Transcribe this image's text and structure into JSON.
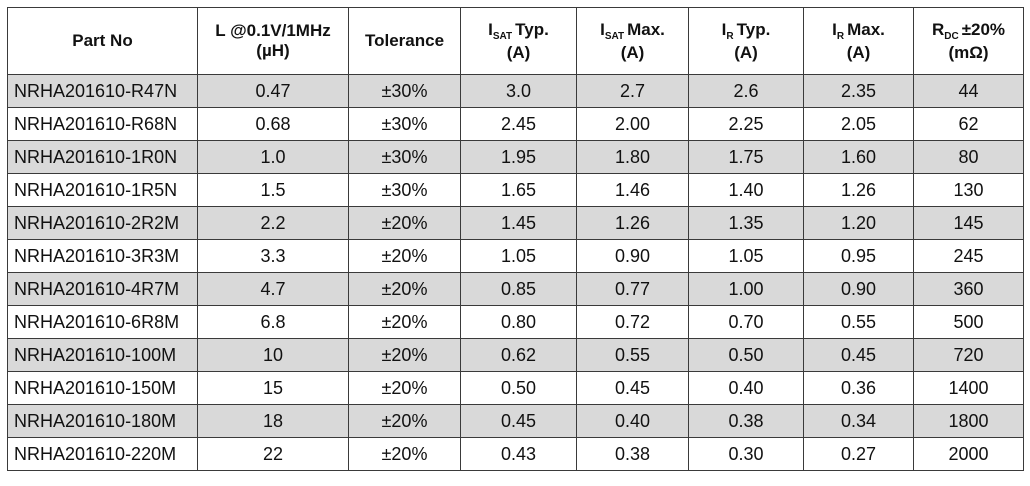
{
  "table": {
    "headers": [
      {
        "pre": "Part No",
        "sub": "",
        "post": "",
        "line2": ""
      },
      {
        "pre": "L @0.1V/1MHz",
        "sub": "",
        "post": "",
        "line2": "(µH)"
      },
      {
        "pre": "Tolerance",
        "sub": "",
        "post": "",
        "line2": ""
      },
      {
        "pre": "I",
        "sub": "SAT",
        "post": "Typ.",
        "line2": "(A)"
      },
      {
        "pre": "I",
        "sub": "SAT",
        "post": "Max.",
        "line2": "(A)"
      },
      {
        "pre": "I",
        "sub": "R",
        "post": "Typ.",
        "line2": "(A)"
      },
      {
        "pre": "I",
        "sub": "R",
        "post": "Max.",
        "line2": "(A)"
      },
      {
        "pre": "R",
        "sub": "DC",
        "post": "±20%",
        "line2": "(mΩ)"
      }
    ],
    "rows": [
      [
        "NRHA201610-R47N",
        "0.47",
        "±30%",
        "3.0",
        "2.7",
        "2.6",
        "2.35",
        "44"
      ],
      [
        "NRHA201610-R68N",
        "0.68",
        "±30%",
        "2.45",
        "2.00",
        "2.25",
        "2.05",
        "62"
      ],
      [
        "NRHA201610-1R0N",
        "1.0",
        "±30%",
        "1.95",
        "1.80",
        "1.75",
        "1.60",
        "80"
      ],
      [
        "NRHA201610-1R5N",
        "1.5",
        "±30%",
        "1.65",
        "1.46",
        "1.40",
        "1.26",
        "130"
      ],
      [
        "NRHA201610-2R2M",
        "2.2",
        "±20%",
        "1.45",
        "1.26",
        "1.35",
        "1.20",
        "145"
      ],
      [
        "NRHA201610-3R3M",
        "3.3",
        "±20%",
        "1.05",
        "0.90",
        "1.05",
        "0.95",
        "245"
      ],
      [
        "NRHA201610-4R7M",
        "4.7",
        "±20%",
        "0.85",
        "0.77",
        "1.00",
        "0.90",
        "360"
      ],
      [
        "NRHA201610-6R8M",
        "6.8",
        "±20%",
        "0.80",
        "0.72",
        "0.70",
        "0.55",
        "500"
      ],
      [
        "NRHA201610-100M",
        "10",
        "±20%",
        "0.62",
        "0.55",
        "0.50",
        "0.45",
        "720"
      ],
      [
        "NRHA201610-150M",
        "15",
        "±20%",
        "0.50",
        "0.45",
        "0.40",
        "0.36",
        "1400"
      ],
      [
        "NRHA201610-180M",
        "18",
        "±20%",
        "0.45",
        "0.40",
        "0.38",
        "0.34",
        "1800"
      ],
      [
        "NRHA201610-220M",
        "22",
        "±20%",
        "0.43",
        "0.38",
        "0.30",
        "0.27",
        "2000"
      ]
    ],
    "shaded_row_color": "#d9d9d9",
    "border_color": "#3a3a3a"
  }
}
